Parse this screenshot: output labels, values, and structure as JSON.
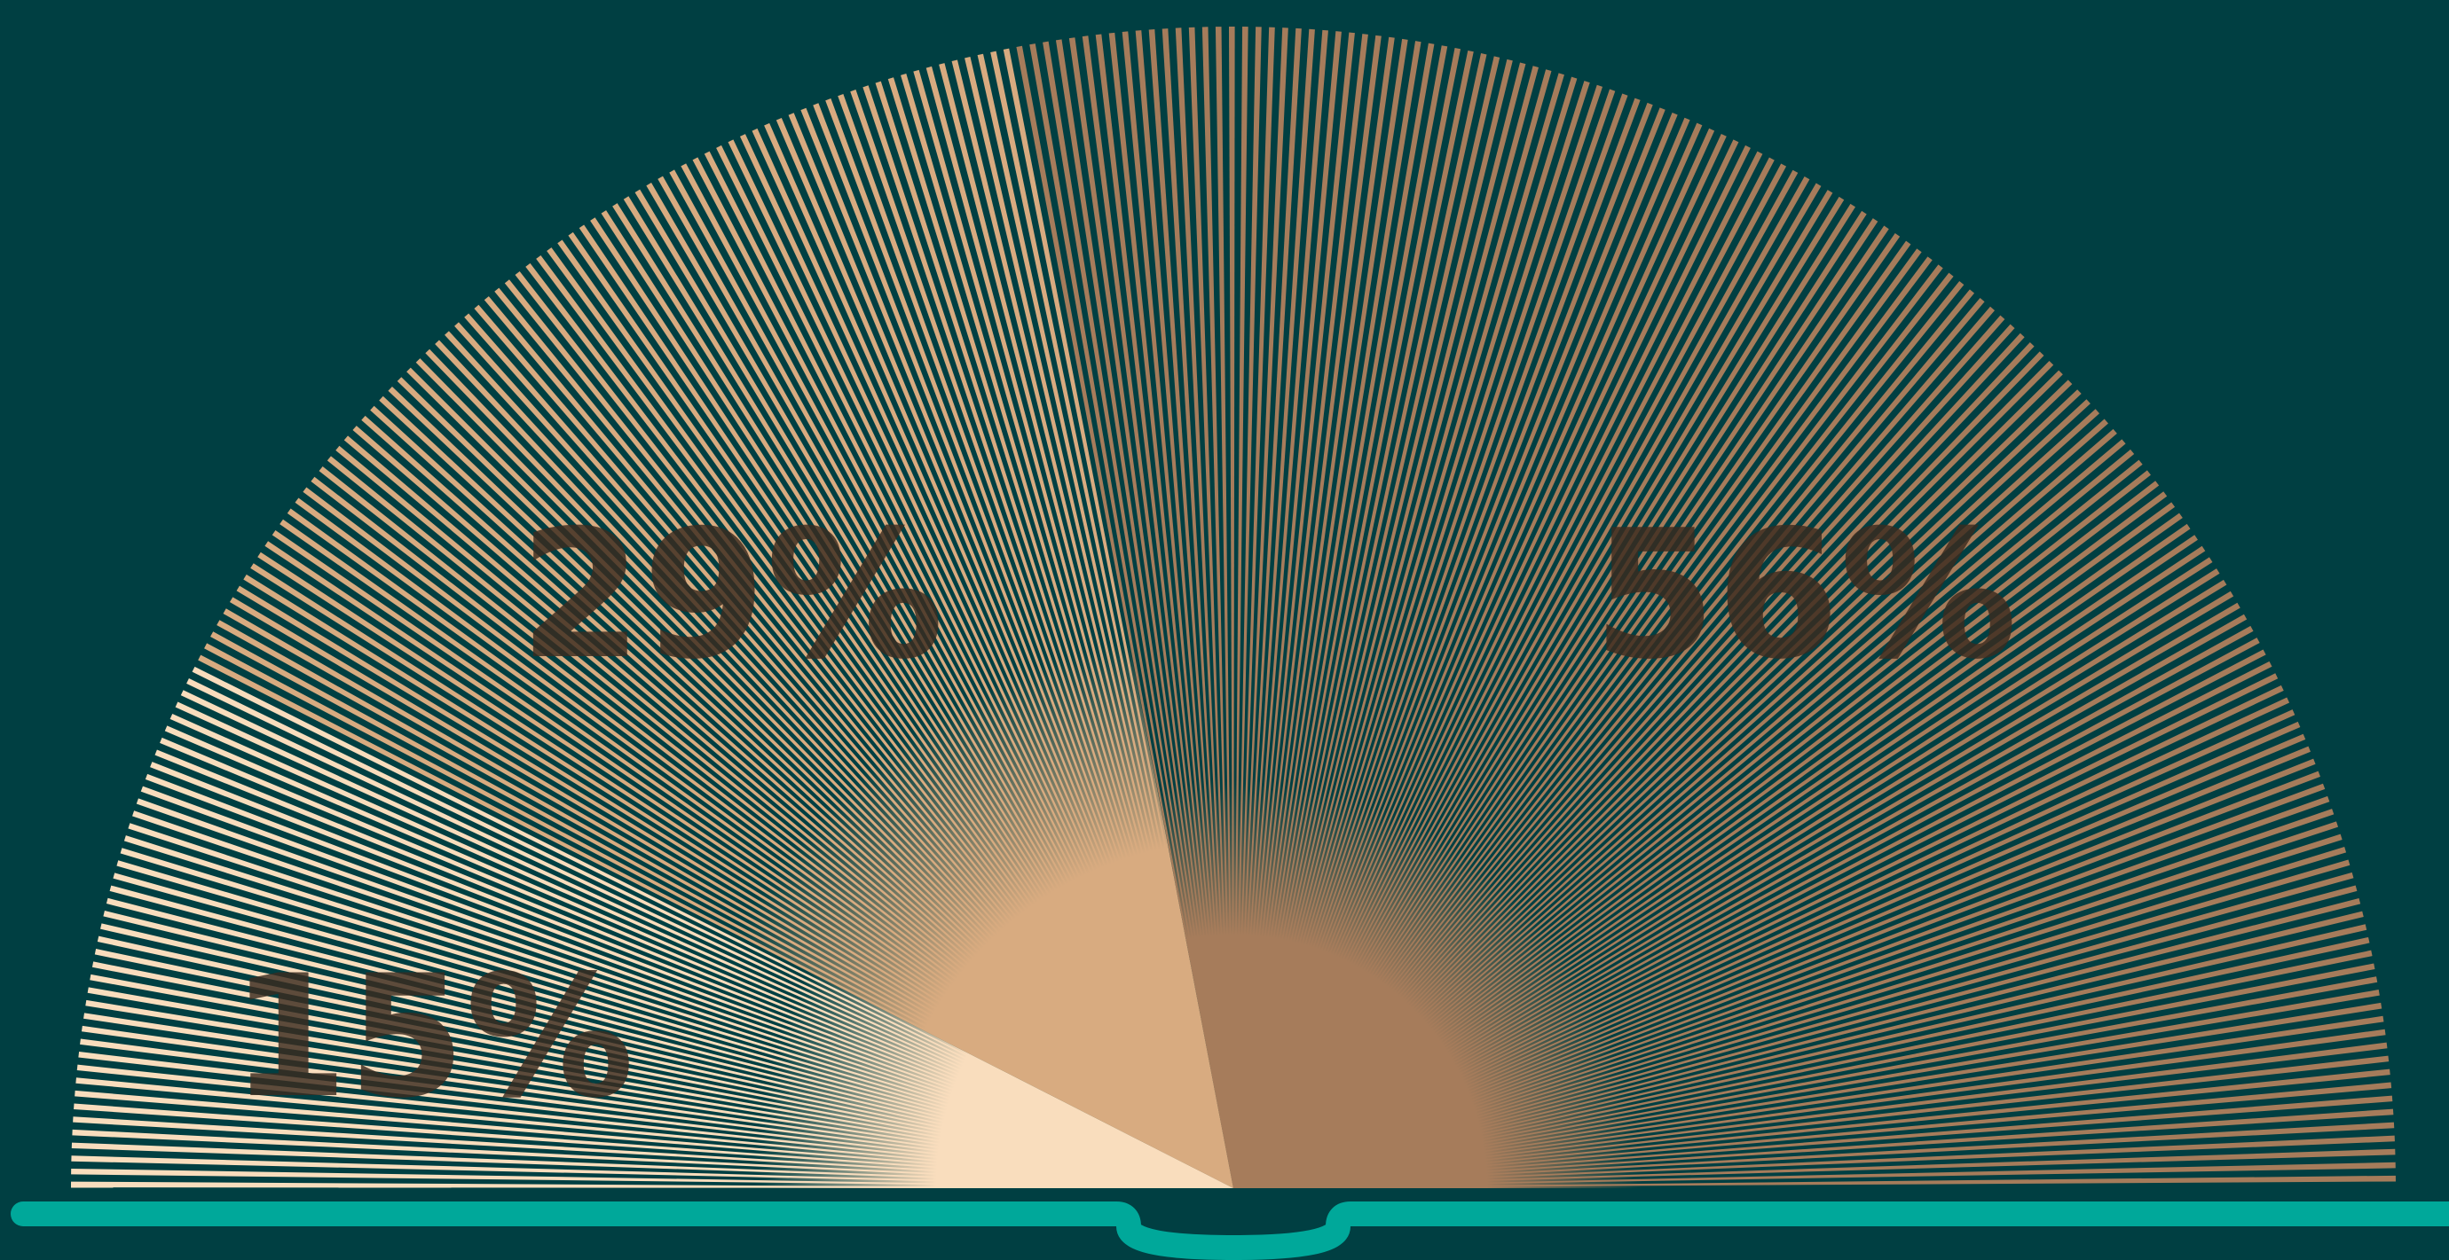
{
  "chart_data": {
    "type": "pie",
    "variant": "semicircle-sunburst",
    "slices": [
      {
        "name": "",
        "value": 15,
        "label": "15%",
        "color": "#f9ddbd"
      },
      {
        "name": "",
        "value": 29,
        "label": "29%",
        "color": "#d8ab80"
      },
      {
        "name": "",
        "value": 56,
        "label": "56%",
        "color": "#a67c5b"
      }
    ],
    "title": "",
    "legend": "none"
  },
  "colors": {
    "background": "#003f42",
    "base_bar": "#00a89a"
  }
}
